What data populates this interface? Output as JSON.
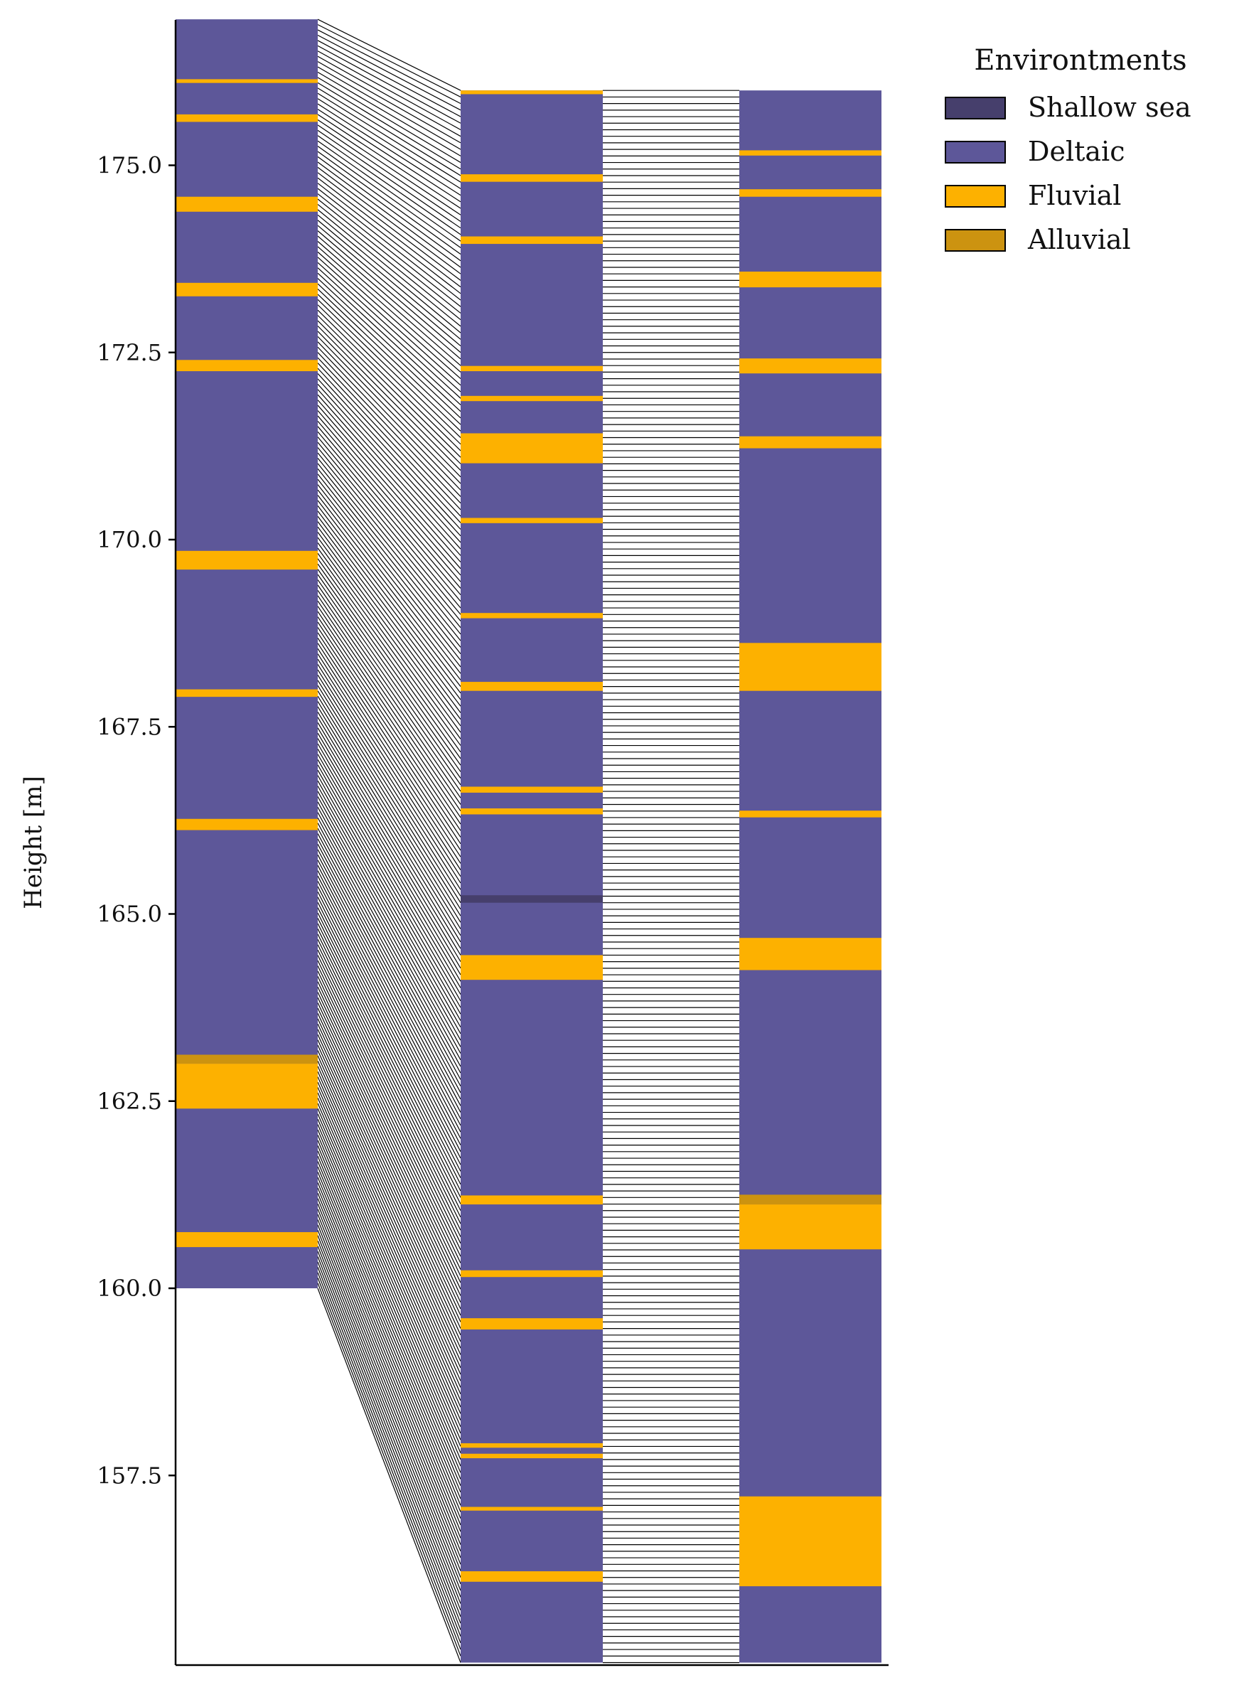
{
  "chart_data": {
    "type": "stratigraphic-columns",
    "ylabel": "Height [m]",
    "ylim": [
      155.0,
      177.0
    ],
    "yticks": [
      157.5,
      160.0,
      162.5,
      165.0,
      167.5,
      170.0,
      172.5,
      175.0
    ],
    "ytick_labels": [
      "157.5",
      "160.0",
      "162.5",
      "165.0",
      "167.5",
      "170.0",
      "172.5",
      "175.0"
    ],
    "legend": {
      "title": "Environtments",
      "placement": "top-right",
      "entries": [
        {
          "label": "Shallow sea",
          "color": "#463f6c"
        },
        {
          "label": "Deltaic",
          "color": "#5d5799"
        },
        {
          "label": "Fluvial",
          "color": "#fdb100"
        },
        {
          "label": "Alluvial",
          "color": "#cc9310"
        }
      ]
    },
    "background_color": "#5d5799",
    "columns": [
      {
        "name": "column-1",
        "bottom": 160.0,
        "top": 176.95,
        "beds": [
          {
            "env": "Fluvial",
            "bottom": 176.1,
            "top": 176.15
          },
          {
            "env": "Fluvial",
            "bottom": 175.58,
            "top": 175.68
          },
          {
            "env": "Fluvial",
            "bottom": 174.38,
            "top": 174.58
          },
          {
            "env": "Fluvial",
            "bottom": 173.25,
            "top": 173.43
          },
          {
            "env": "Fluvial",
            "bottom": 172.25,
            "top": 172.4
          },
          {
            "env": "Fluvial",
            "bottom": 169.6,
            "top": 169.85
          },
          {
            "env": "Fluvial",
            "bottom": 167.9,
            "top": 168.0
          },
          {
            "env": "Fluvial",
            "bottom": 166.12,
            "top": 166.27
          },
          {
            "env": "Alluvial",
            "bottom": 163.0,
            "top": 163.12
          },
          {
            "env": "Fluvial",
            "bottom": 162.4,
            "top": 163.0
          },
          {
            "env": "Fluvial",
            "bottom": 160.55,
            "top": 160.75
          }
        ]
      },
      {
        "name": "column-2",
        "bottom": 155.0,
        "top": 176.0,
        "beds": [
          {
            "env": "Fluvial",
            "bottom": 175.95,
            "top": 176.0
          },
          {
            "env": "Fluvial",
            "bottom": 174.78,
            "top": 174.88
          },
          {
            "env": "Fluvial",
            "bottom": 173.95,
            "top": 174.05
          },
          {
            "env": "Fluvial",
            "bottom": 172.25,
            "top": 172.32
          },
          {
            "env": "Fluvial",
            "bottom": 171.85,
            "top": 171.92
          },
          {
            "env": "Fluvial",
            "bottom": 171.02,
            "top": 171.42
          },
          {
            "env": "Fluvial",
            "bottom": 170.22,
            "top": 170.29
          },
          {
            "env": "Fluvial",
            "bottom": 168.95,
            "top": 169.02
          },
          {
            "env": "Fluvial",
            "bottom": 167.98,
            "top": 168.1
          },
          {
            "env": "Fluvial",
            "bottom": 166.62,
            "top": 166.7
          },
          {
            "env": "Fluvial",
            "bottom": 166.33,
            "top": 166.41
          },
          {
            "env": "Shallow sea",
            "bottom": 165.15,
            "top": 165.25
          },
          {
            "env": "Fluvial",
            "bottom": 164.12,
            "top": 164.45
          },
          {
            "env": "Fluvial",
            "bottom": 161.12,
            "top": 161.24
          },
          {
            "env": "Fluvial",
            "bottom": 160.15,
            "top": 160.24
          },
          {
            "env": "Fluvial",
            "bottom": 159.45,
            "top": 159.6
          },
          {
            "env": "Fluvial",
            "bottom": 157.87,
            "top": 157.93
          },
          {
            "env": "Fluvial",
            "bottom": 157.73,
            "top": 157.79
          },
          {
            "env": "Fluvial",
            "bottom": 157.03,
            "top": 157.08
          },
          {
            "env": "Fluvial",
            "bottom": 156.08,
            "top": 156.22
          }
        ]
      },
      {
        "name": "column-3",
        "bottom": 155.0,
        "top": 176.0,
        "beds": [
          {
            "env": "Fluvial",
            "bottom": 175.13,
            "top": 175.2
          },
          {
            "env": "Fluvial",
            "bottom": 174.58,
            "top": 174.68
          },
          {
            "env": "Fluvial",
            "bottom": 173.37,
            "top": 173.58
          },
          {
            "env": "Fluvial",
            "bottom": 172.22,
            "top": 172.42
          },
          {
            "env": "Fluvial",
            "bottom": 171.22,
            "top": 171.38
          },
          {
            "env": "Fluvial",
            "bottom": 167.98,
            "top": 168.62
          },
          {
            "env": "Fluvial",
            "bottom": 166.29,
            "top": 166.38
          },
          {
            "env": "Fluvial",
            "bottom": 164.25,
            "top": 164.68
          },
          {
            "env": "Alluvial",
            "bottom": 161.12,
            "top": 161.25
          },
          {
            "env": "Fluvial",
            "bottom": 160.52,
            "top": 161.12
          },
          {
            "env": "Fluvial",
            "bottom": 156.02,
            "top": 157.22
          }
        ]
      }
    ],
    "tie_lines": [
      {
        "name": "tie-lines-1-2",
        "from_column": 1,
        "to_column": 2,
        "from_range": [
          160.0,
          176.95
        ],
        "to_range": [
          155.0,
          176.0
        ]
      },
      {
        "name": "tie-lines-2-3",
        "from_column": 2,
        "to_column": 3,
        "from_range": [
          155.0,
          176.0
        ],
        "to_range": [
          155.0,
          176.0
        ]
      }
    ]
  }
}
